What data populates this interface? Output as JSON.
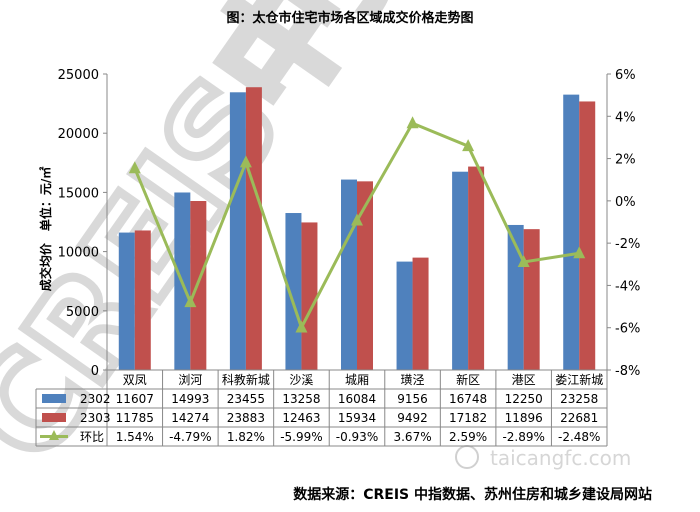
{
  "chart_data": {
    "type": "bar",
    "title": "图：太仓市住宅市场各区域成交价格走势图",
    "ylabel": "成交均价　单位：元/㎡",
    "ylim": [
      0,
      25000
    ],
    "yticks": [
      0,
      5000,
      10000,
      15000,
      20000,
      25000
    ],
    "y2lim": [
      -8,
      6
    ],
    "y2ticks": [
      "-8%",
      "-6%",
      "-4%",
      "-2%",
      "0%",
      "2%",
      "4%",
      "6%"
    ],
    "categories": [
      "双凤",
      "浏河",
      "科教新城",
      "沙溪",
      "城厢",
      "璜泾",
      "新区",
      "港区",
      "娄江新城"
    ],
    "series": [
      {
        "name": "2302",
        "type": "bar",
        "axis": "left",
        "color": "#4F81BD",
        "values": [
          11607,
          14993,
          23455,
          13258,
          16084,
          9156,
          16748,
          12250,
          23258
        ]
      },
      {
        "name": "2303",
        "type": "bar",
        "axis": "left",
        "color": "#C0504D",
        "values": [
          11785,
          14274,
          23883,
          12463,
          15934,
          9492,
          17182,
          11896,
          22681
        ]
      },
      {
        "name": "环比",
        "type": "line",
        "axis": "right",
        "color": "#9BBB59",
        "values": [
          1.54,
          -4.79,
          1.82,
          -5.99,
          -0.93,
          3.67,
          2.59,
          -2.89,
          -2.48
        ],
        "labels": [
          "1.54%",
          "-4.79%",
          "1.82%",
          "-5.99%",
          "-0.93%",
          "3.67%",
          "2.59%",
          "-2.89%",
          "-2.48%"
        ]
      }
    ],
    "grid": false,
    "legend": "table"
  },
  "source": "数据来源：CREIS 中指数据、苏州住房和城乡建设局网站",
  "watermark": {
    "logo_text": "CREIS中指数据",
    "site": "taicangfc.com"
  }
}
